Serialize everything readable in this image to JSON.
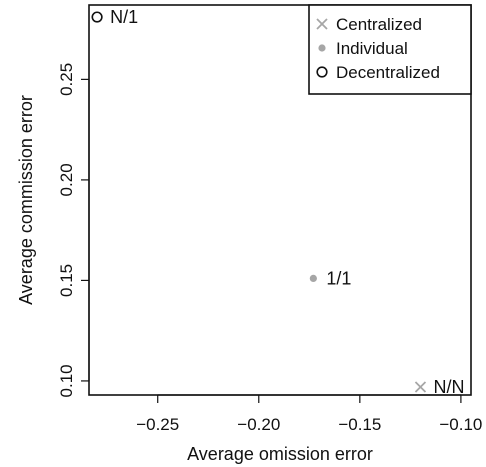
{
  "chart_data": {
    "type": "scatter",
    "title": "",
    "xlabel": "Average omission error",
    "ylabel": "Average commission error",
    "xlim": [
      -0.284,
      -0.095
    ],
    "ylim": [
      0.093,
      0.287
    ],
    "xticks": [
      -0.25,
      -0.2,
      -0.15,
      -0.1
    ],
    "xtick_labels": [
      "−0.25",
      "−0.20",
      "−0.15",
      "−0.10"
    ],
    "yticks": [
      0.1,
      0.15,
      0.2,
      0.25
    ],
    "ytick_labels": [
      "0.10",
      "0.15",
      "0.20",
      "0.25"
    ],
    "grid": false,
    "legend_position": "top-right",
    "series": [
      {
        "name": "Centralized",
        "marker": "cross",
        "color": "#a6a6a6",
        "points": [
          {
            "x": -0.12,
            "y": 0.097,
            "label": "N/N"
          }
        ]
      },
      {
        "name": "Individual",
        "marker": "filled-circle",
        "color": "#a6a6a6",
        "points": [
          {
            "x": -0.173,
            "y": 0.151,
            "label": "1/1"
          }
        ]
      },
      {
        "name": "Decentralized",
        "marker": "open-circle",
        "color": "#111111",
        "points": [
          {
            "x": -0.28,
            "y": 0.281,
            "label": "N/1"
          }
        ]
      }
    ]
  }
}
